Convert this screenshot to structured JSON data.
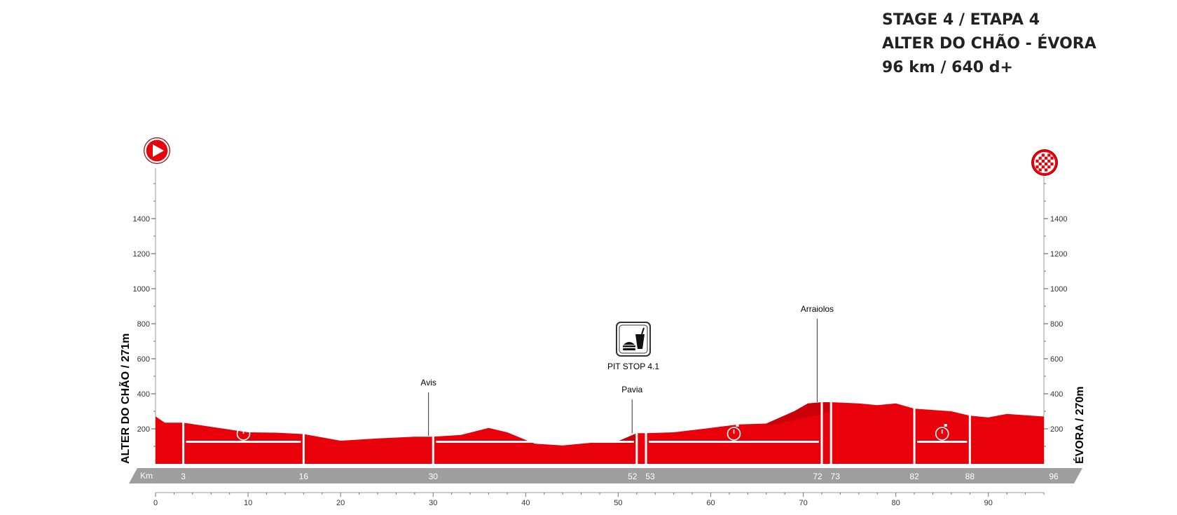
{
  "header": {
    "stage": "STAGE 4 / ETAPA 4",
    "route": "ALTER DO CHÃO - ÉVORA",
    "stats": "96 km / 640 d+"
  },
  "start_label": "ALTER DO CHÃO / 271m",
  "finish_label": "ÉVORA / 270m",
  "km_prefix": "Km",
  "pit_stop_label": "PIT STOP 4.1",
  "icons": {
    "start": "start-play-icon",
    "finish": "finish-checkered-icon",
    "timer": "stopwatch-icon",
    "pit_stop": "food-drink-icon"
  },
  "colors": {
    "profile": "#e8000b",
    "profile_dark": "#b3000a",
    "km_band": "#9e9e9e",
    "accent": "#e8000b"
  },
  "chart_data": {
    "type": "area",
    "title": "",
    "xlabel": "",
    "ylabel": "",
    "xlim": [
      0,
      96
    ],
    "ylim": [
      0,
      1600
    ],
    "x_ticks": [
      0,
      10,
      20,
      30,
      40,
      50,
      60,
      70,
      80,
      90
    ],
    "y_ticks": [
      200,
      400,
      600,
      800,
      1000,
      1200,
      1400
    ],
    "grid": false,
    "series": [
      {
        "x": [
          0,
          1,
          3,
          10,
          13,
          16,
          20,
          24,
          28,
          30,
          33,
          36,
          38,
          41,
          44,
          47,
          50,
          52,
          53,
          56,
          60,
          63,
          66,
          69,
          70.5,
          72,
          73,
          76,
          78,
          80,
          82,
          86,
          88,
          90,
          92,
          96
        ],
        "y": [
          271,
          235,
          235,
          180,
          178,
          170,
          132,
          145,
          155,
          155,
          165,
          205,
          180,
          115,
          105,
          120,
          130,
          175,
          175,
          180,
          205,
          225,
          230,
          300,
          345,
          352,
          352,
          345,
          335,
          345,
          315,
          300,
          275,
          265,
          285,
          270
        ]
      }
    ],
    "km_markers": [
      "3",
      "16",
      "30",
      "52",
      "53",
      "72",
      "73",
      "82",
      "88",
      "96"
    ],
    "towns": [
      {
        "name": "Avis",
        "km": 29.5,
        "alt": 160
      },
      {
        "name": "Pavia",
        "km": 51.5,
        "alt": 175
      },
      {
        "name": "Arraiolos",
        "km": 71.5,
        "alt": 352
      }
    ],
    "timed_sectors": [
      {
        "from": 3,
        "to": 16
      },
      {
        "from": 30,
        "to": 52
      },
      {
        "from": 53,
        "to": 72
      },
      {
        "from": 82,
        "to": 88
      }
    ]
  }
}
